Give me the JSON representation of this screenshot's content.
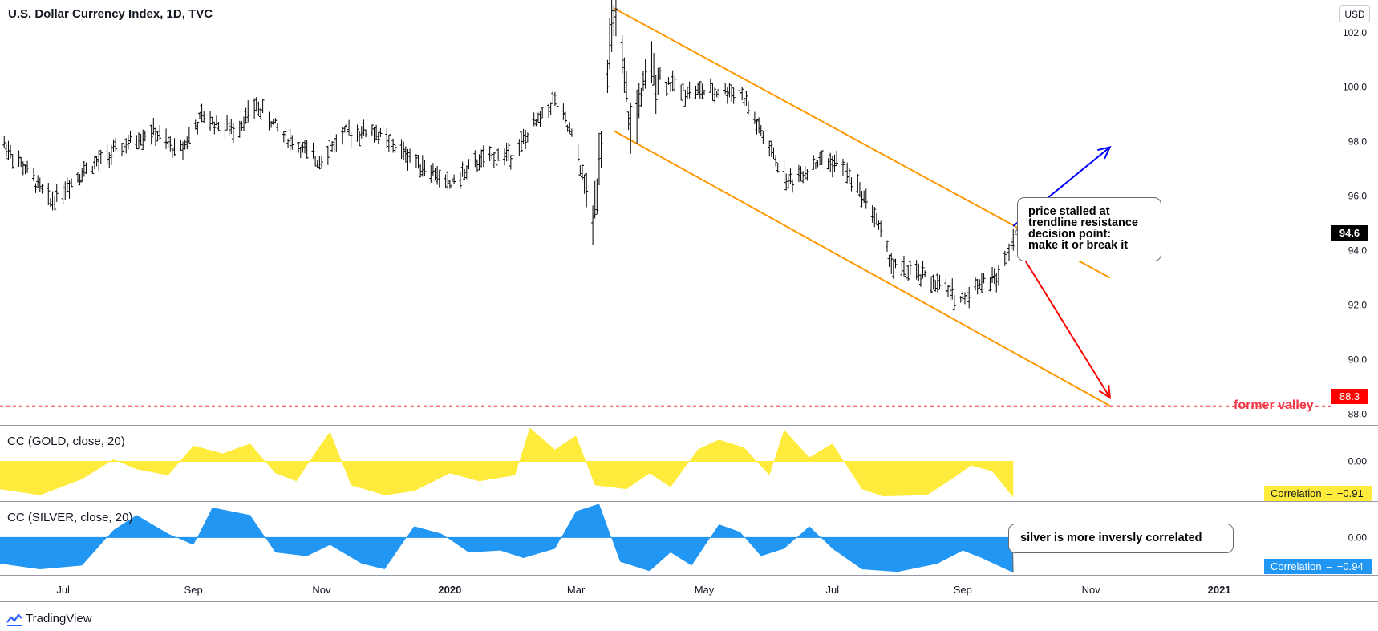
{
  "header": {
    "title": "U.S. Dollar Currency Index, 1D, TVC",
    "currency_button": "USD"
  },
  "chart_data": [
    {
      "type": "ohlc",
      "title": "U.S. Dollar Currency Index, 1D, TVC",
      "x_ticks": [
        "Jul",
        "Sep",
        "Nov",
        "2020",
        "Mar",
        "May",
        "Jul",
        "Sep",
        "Nov",
        "2021"
      ],
      "y_ticks": [
        "102.0",
        "100.0",
        "98.0",
        "96.0",
        "94.0",
        "92.0",
        "90.0",
        "88.0"
      ],
      "ylim": [
        87.6,
        103.2
      ],
      "x_range": [
        "2019-06-01",
        "2021-02-23"
      ],
      "last_price": {
        "label": "94.6",
        "value": 94.6
      },
      "price_path": [
        [
          "2019-06-01",
          98.1
        ],
        [
          "2019-06-15",
          96.8
        ],
        [
          "2019-06-25",
          95.8
        ],
        [
          "2019-07-10",
          96.9
        ],
        [
          "2019-07-25",
          97.6
        ],
        [
          "2019-08-12",
          98.4
        ],
        [
          "2019-08-25",
          97.6
        ],
        [
          "2019-09-05",
          98.9
        ],
        [
          "2019-09-20",
          98.4
        ],
        [
          "2019-10-01",
          99.3
        ],
        [
          "2019-10-15",
          98.2
        ],
        [
          "2019-10-30",
          97.3
        ],
        [
          "2019-11-12",
          98.3
        ],
        [
          "2019-11-25",
          98.4
        ],
        [
          "2019-12-10",
          97.6
        ],
        [
          "2019-12-20",
          97.1
        ],
        [
          "2020-01-01",
          96.4
        ],
        [
          "2020-01-15",
          97.3
        ],
        [
          "2020-02-01",
          97.6
        ],
        [
          "2020-02-20",
          99.6
        ],
        [
          "2020-03-01",
          97.8
        ],
        [
          "2020-03-09",
          95.0
        ],
        [
          "2020-03-13",
          98.2
        ],
        [
          "2020-03-19",
          102.8
        ],
        [
          "2020-03-27",
          98.4
        ],
        [
          "2020-04-05",
          100.6
        ],
        [
          "2020-04-20",
          99.9
        ],
        [
          "2020-05-05",
          99.8
        ],
        [
          "2020-05-18",
          99.9
        ],
        [
          "2020-05-28",
          98.3
        ],
        [
          "2020-06-10",
          96.5
        ],
        [
          "2020-06-25",
          97.3
        ],
        [
          "2020-07-05",
          97.2
        ],
        [
          "2020-07-20",
          95.5
        ],
        [
          "2020-07-30",
          93.4
        ],
        [
          "2020-08-15",
          93.0
        ],
        [
          "2020-08-31",
          92.2
        ],
        [
          "2020-09-10",
          92.9
        ],
        [
          "2020-09-18",
          93.0
        ],
        [
          "2020-09-25",
          94.6
        ]
      ],
      "trendline_upper": {
        "start": [
          "2020-03-19",
          102.9
        ],
        "end": [
          "2020-11-10",
          93.0
        ]
      },
      "trendline_lower": {
        "start": [
          "2020-03-19",
          98.4
        ],
        "end": [
          "2020-11-10",
          88.3
        ]
      },
      "horizontal_line": {
        "value": 88.3,
        "label": "88.3",
        "annotation": "former valley",
        "color": "#f23645"
      },
      "arrows": [
        {
          "color": "#0000ff",
          "from": [
            "2020-09-25",
            94.9
          ],
          "to": [
            "2020-11-10",
            97.8
          ]
        },
        {
          "color": "#ff0000",
          "from": [
            "2020-09-27",
            94.1
          ],
          "to": [
            "2020-11-10",
            88.6
          ]
        }
      ],
      "colors": {
        "bars": "#000000",
        "channel": "#ff9800",
        "blue_arrow": "#0000ff",
        "red_arrow": "#ff0000"
      }
    },
    {
      "type": "area",
      "title": "CC (GOLD, close, 20)",
      "y_ticks": [
        "0.00"
      ],
      "ylim": [
        -1.0,
        0.9
      ],
      "last_value": {
        "label": "Correlation",
        "value": -0.91,
        "value_label": "−0.91"
      },
      "color": "#ffeb3b",
      "values": [
        [
          "2019-06-01",
          -0.7
        ],
        [
          "2019-06-20",
          -0.85
        ],
        [
          "2019-07-10",
          -0.45
        ],
        [
          "2019-07-25",
          0.05
        ],
        [
          "2019-08-05",
          -0.2
        ],
        [
          "2019-08-20",
          -0.35
        ],
        [
          "2019-09-01",
          0.4
        ],
        [
          "2019-09-15",
          0.2
        ],
        [
          "2019-09-28",
          0.45
        ],
        [
          "2019-10-10",
          -0.3
        ],
        [
          "2019-10-20",
          -0.5
        ],
        [
          "2019-10-30",
          0.3
        ],
        [
          "2019-11-05",
          0.75
        ],
        [
          "2019-11-15",
          -0.6
        ],
        [
          "2019-12-01",
          -0.85
        ],
        [
          "2019-12-15",
          -0.75
        ],
        [
          "2020-01-01",
          -0.3
        ],
        [
          "2020-01-15",
          -0.5
        ],
        [
          "2020-02-01",
          -0.35
        ],
        [
          "2020-02-08",
          0.85
        ],
        [
          "2020-02-20",
          0.3
        ],
        [
          "2020-03-01",
          0.65
        ],
        [
          "2020-03-10",
          -0.6
        ],
        [
          "2020-03-25",
          -0.7
        ],
        [
          "2020-04-05",
          -0.3
        ],
        [
          "2020-04-15",
          -0.65
        ],
        [
          "2020-04-28",
          0.3
        ],
        [
          "2020-05-08",
          0.55
        ],
        [
          "2020-05-20",
          0.35
        ],
        [
          "2020-06-01",
          -0.35
        ],
        [
          "2020-06-08",
          0.8
        ],
        [
          "2020-06-20",
          0.1
        ],
        [
          "2020-07-01",
          0.45
        ],
        [
          "2020-07-15",
          -0.7
        ],
        [
          "2020-07-25",
          -0.88
        ],
        [
          "2020-08-15",
          -0.85
        ],
        [
          "2020-08-28",
          -0.4
        ],
        [
          "2020-09-05",
          -0.1
        ],
        [
          "2020-09-15",
          -0.25
        ],
        [
          "2020-09-25",
          -0.91
        ]
      ]
    },
    {
      "type": "area",
      "title": "CC (SILVER, close, 20)",
      "y_ticks": [
        "0.00"
      ],
      "ylim": [
        -1.0,
        0.95
      ],
      "last_value": {
        "label": "Correlation",
        "value": -0.94,
        "value_label": "−0.94"
      },
      "color": "#2196f3",
      "values": [
        [
          "2019-06-01",
          -0.7
        ],
        [
          "2019-06-20",
          -0.85
        ],
        [
          "2019-07-10",
          -0.75
        ],
        [
          "2019-07-25",
          0.2
        ],
        [
          "2019-08-05",
          0.6
        ],
        [
          "2019-08-20",
          0.1
        ],
        [
          "2019-09-01",
          -0.2
        ],
        [
          "2019-09-10",
          0.8
        ],
        [
          "2019-09-28",
          0.6
        ],
        [
          "2019-10-10",
          -0.4
        ],
        [
          "2019-10-25",
          -0.5
        ],
        [
          "2019-11-05",
          -0.2
        ],
        [
          "2019-11-20",
          -0.7
        ],
        [
          "2019-12-01",
          -0.85
        ],
        [
          "2019-12-15",
          0.3
        ],
        [
          "2019-12-28",
          0.1
        ],
        [
          "2020-01-10",
          -0.4
        ],
        [
          "2020-01-25",
          -0.35
        ],
        [
          "2020-02-05",
          -0.55
        ],
        [
          "2020-02-20",
          -0.3
        ],
        [
          "2020-03-01",
          0.7
        ],
        [
          "2020-03-12",
          0.9
        ],
        [
          "2020-03-22",
          -0.65
        ],
        [
          "2020-04-05",
          -0.9
        ],
        [
          "2020-04-15",
          -0.4
        ],
        [
          "2020-04-25",
          -0.75
        ],
        [
          "2020-05-08",
          0.35
        ],
        [
          "2020-05-18",
          0.15
        ],
        [
          "2020-05-28",
          -0.5
        ],
        [
          "2020-06-08",
          -0.3
        ],
        [
          "2020-06-20",
          0.3
        ],
        [
          "2020-07-01",
          -0.3
        ],
        [
          "2020-07-15",
          -0.85
        ],
        [
          "2020-08-01",
          -0.92
        ],
        [
          "2020-08-20",
          -0.7
        ],
        [
          "2020-09-01",
          -0.35
        ],
        [
          "2020-09-10",
          -0.55
        ],
        [
          "2020-09-25",
          -0.94
        ]
      ]
    }
  ],
  "annotations": {
    "callout_price": [
      "price stalled at",
      "trendline resistance",
      "decision point:",
      "make it or break it"
    ],
    "callout_silver": "silver is more inversly correlated",
    "former_valley": "former valley"
  },
  "indicators": {
    "gold_label": "CC (GOLD, close, 20)",
    "silver_label": "CC (SILVER, close, 20)"
  },
  "footer": {
    "brand": "TradingView"
  }
}
